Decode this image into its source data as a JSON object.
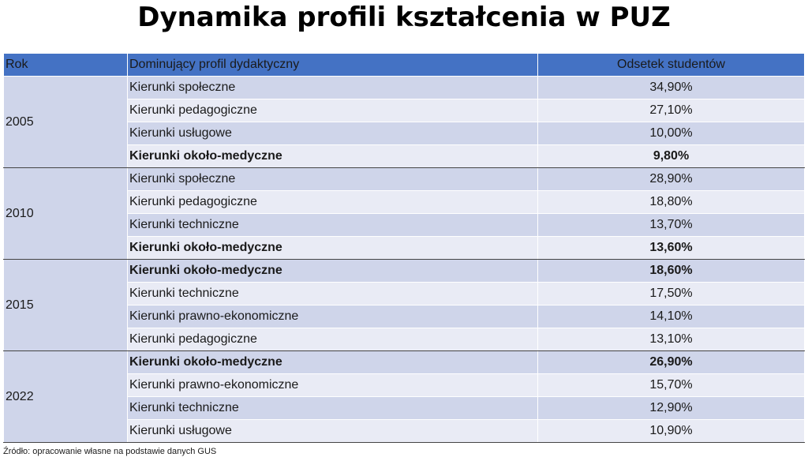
{
  "title": "Dynamika profili kształcenia w PUZ",
  "table": {
    "headers": {
      "year": "Rok",
      "profile": "Dominujący profil dydaktyczny",
      "share": "Odsetek studentów"
    },
    "groups": [
      {
        "year": "2005",
        "rows": [
          {
            "profile": "Kierunki społeczne",
            "share": "34,90%",
            "bold": false
          },
          {
            "profile": "Kierunki pedagogiczne",
            "share": "27,10%",
            "bold": false
          },
          {
            "profile": "Kierunki usługowe",
            "share": "10,00%",
            "bold": false
          },
          {
            "profile": "Kierunki około-medyczne",
            "share": "9,80%",
            "bold": true
          }
        ]
      },
      {
        "year": "2010",
        "rows": [
          {
            "profile": "Kierunki społeczne",
            "share": "28,90%",
            "bold": false
          },
          {
            "profile": "Kierunki pedagogiczne",
            "share": "18,80%",
            "bold": false
          },
          {
            "profile": "Kierunki techniczne",
            "share": "13,70%",
            "bold": false
          },
          {
            "profile": "Kierunki około-medyczne",
            "share": "13,60%",
            "bold": true
          }
        ]
      },
      {
        "year": "2015",
        "rows": [
          {
            "profile": "Kierunki około-medyczne",
            "share": "18,60%",
            "bold": true
          },
          {
            "profile": "Kierunki techniczne",
            "share": "17,50%",
            "bold": false
          },
          {
            "profile": "Kierunki prawno-ekonomiczne",
            "share": "14,10%",
            "bold": false
          },
          {
            "profile": "Kierunki pedagogiczne",
            "share": "13,10%",
            "bold": false
          }
        ]
      },
      {
        "year": "2022",
        "rows": [
          {
            "profile": "Kierunki około-medyczne",
            "share": "26,90%",
            "bold": true
          },
          {
            "profile": "Kierunki prawno-ekonomiczne",
            "share": "15,70%",
            "bold": false
          },
          {
            "profile": "Kierunki techniczne",
            "share": "12,90%",
            "bold": false
          },
          {
            "profile": "Kierunki usługowe",
            "share": "10,90%",
            "bold": false
          }
        ]
      }
    ]
  },
  "source": "Źródło: opracowanie własne na podstawie danych GUS",
  "colors": {
    "header": "#4472c4",
    "row_dark": "#cfd5ea",
    "row_light": "#e9ebf5"
  }
}
